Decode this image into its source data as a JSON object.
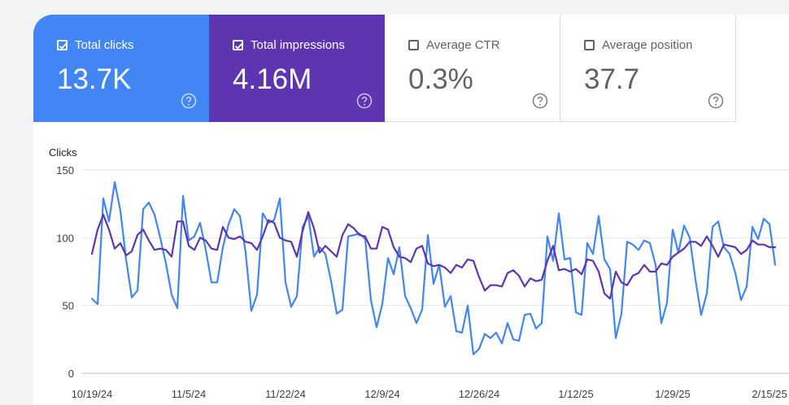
{
  "cards": [
    {
      "label": "Total clicks",
      "value": "13.7K",
      "checked": true
    },
    {
      "label": "Total impressions",
      "value": "4.16M",
      "checked": true
    },
    {
      "label": "Average CTR",
      "value": "0.3%",
      "checked": false
    },
    {
      "label": "Average position",
      "value": "37.7",
      "checked": false
    }
  ],
  "colors": {
    "clicks": "#4285f4",
    "impressions": "#5e35b1",
    "grid": "#e6e6e6",
    "page_bg": "#f1f3f4"
  },
  "chart_data": {
    "type": "line",
    "ylabel": "Clicks",
    "yticks": [
      150,
      100,
      50,
      0
    ],
    "ylim": [
      0,
      150
    ],
    "x_tick_labels": [
      "10/19/24",
      "11/5/24",
      "11/22/24",
      "12/9/24",
      "12/26/24",
      "1/12/25",
      "1/29/25",
      "2/15/25"
    ],
    "x_start": "10/19/24",
    "grid": true,
    "series": [
      {
        "name": "Total clicks",
        "color": "#4285f4",
        "values": [
          55,
          51,
          129,
          112,
          141,
          120,
          84,
          56,
          61,
          121,
          126,
          117,
          100,
          81,
          58,
          48,
          131,
          98,
          101,
          111,
          91,
          67,
          67,
          93,
          110,
          121,
          116,
          89,
          46,
          58,
          118,
          111,
          113,
          129,
          67,
          49,
          57,
          108,
          116,
          86,
          93,
          88,
          68,
          44,
          47,
          101,
          102,
          103,
          99,
          54,
          34,
          51,
          85,
          73,
          93,
          57,
          48,
          37,
          47,
          102,
          66,
          80,
          49,
          57,
          31,
          30,
          50,
          14,
          18,
          29,
          26,
          30,
          22,
          37,
          25,
          24,
          43,
          44,
          33,
          37,
          101,
          83,
          118,
          84,
          85,
          45,
          43,
          96,
          88,
          116,
          84,
          77,
          26,
          44,
          97,
          95,
          91,
          98,
          96,
          80,
          37,
          52,
          106,
          89,
          109,
          100,
          69,
          43,
          59,
          108,
          112,
          93,
          88,
          74,
          54,
          64,
          108,
          99,
          114,
          110,
          80
        ]
      },
      {
        "name": "Total impressions",
        "color": "#5e35b1",
        "values": [
          88,
          106,
          117,
          106,
          92,
          96,
          87,
          90,
          102,
          106,
          98,
          91,
          92,
          91,
          86,
          112,
          112,
          94,
          91,
          100,
          98,
          92,
          91,
          108,
          100,
          99,
          101,
          97,
          96,
          91,
          101,
          113,
          111,
          100,
          98,
          97,
          86,
          105,
          119,
          107,
          89,
          94,
          90,
          86,
          102,
          110,
          107,
          102,
          101,
          92,
          92,
          108,
          106,
          93,
          86,
          85,
          82,
          92,
          94,
          81,
          79,
          80,
          78,
          74,
          80,
          78,
          84,
          83,
          71,
          61,
          65,
          65,
          64,
          74,
          76,
          72,
          64,
          70,
          68,
          69,
          83,
          94,
          76,
          77,
          75,
          77,
          73,
          84,
          83,
          75,
          59,
          55,
          75,
          67,
          65,
          72,
          74,
          80,
          75,
          75,
          81,
          80,
          86,
          89,
          92,
          97,
          97,
          94,
          101,
          94,
          86,
          95,
          94,
          93,
          88,
          91,
          98,
          95,
          95,
          93,
          93
        ]
      }
    ]
  }
}
